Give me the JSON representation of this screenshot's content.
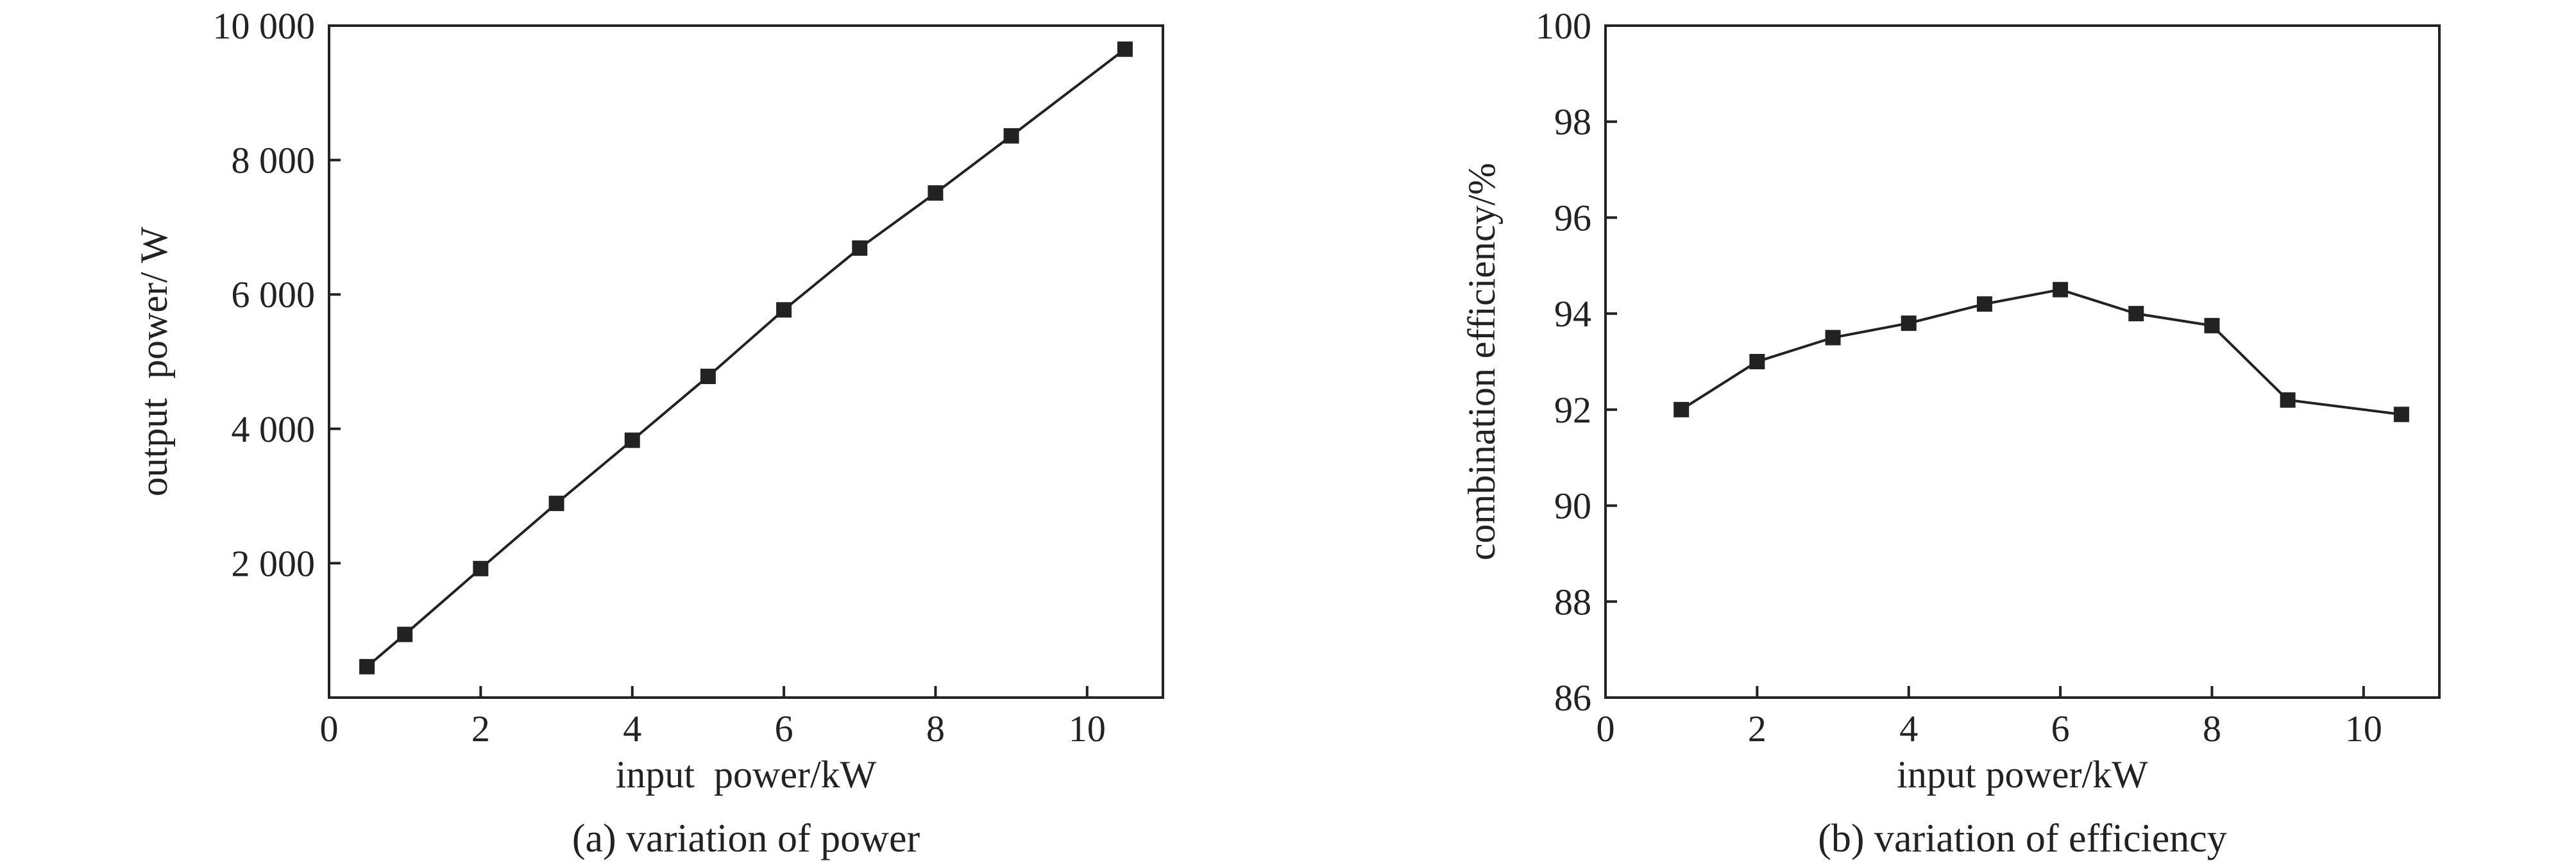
{
  "chart_data": [
    {
      "type": "line",
      "xlabel": "input  power/kW",
      "ylabel": "output  power/ W",
      "caption": "(a) variation of power",
      "xlim": [
        0,
        11
      ],
      "ylim": [
        0,
        10000
      ],
      "xticks": [
        0,
        2,
        4,
        6,
        8,
        10
      ],
      "xtick_labels": [
        "0",
        "2",
        "4",
        "6",
        "8",
        "10"
      ],
      "yticks": [
        2000,
        4000,
        6000,
        8000,
        10000
      ],
      "ytick_labels": [
        "2 000",
        "4 000",
        "6 000",
        "8 000",
        "10 000"
      ],
      "series": [
        {
          "x": [
            0.5,
            1,
            2,
            3,
            4,
            5,
            6,
            7,
            8,
            9,
            10.5
          ],
          "y": [
            460,
            940,
            1920,
            2890,
            3830,
            4780,
            5770,
            6690,
            7510,
            8360,
            9650
          ]
        }
      ]
    },
    {
      "type": "line",
      "xlabel": "input power/kW",
      "ylabel": "combination efficiency/%",
      "caption": "(b) variation of efficiency",
      "xlim": [
        0,
        11
      ],
      "ylim": [
        86,
        100
      ],
      "xticks": [
        0,
        2,
        4,
        6,
        8,
        10
      ],
      "xtick_labels": [
        "0",
        "2",
        "4",
        "6",
        "8",
        "10"
      ],
      "yticks": [
        86,
        88,
        90,
        92,
        94,
        96,
        98,
        100
      ],
      "ytick_labels": [
        "86",
        "88",
        "90",
        "92",
        "94",
        "96",
        "98",
        "100"
      ],
      "series": [
        {
          "x": [
            1,
            2,
            3,
            4,
            5,
            6,
            7,
            8,
            9,
            10.5
          ],
          "y": [
            92.0,
            93.0,
            93.5,
            93.8,
            94.2,
            94.5,
            94.0,
            93.75,
            92.2,
            91.9
          ]
        }
      ]
    }
  ]
}
